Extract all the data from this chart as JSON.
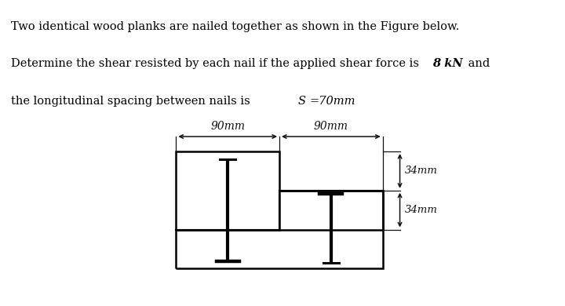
{
  "background_color": "#ffffff",
  "line_color": "#000000",
  "label_90_1": "90mm",
  "label_90_2": "90mm",
  "label_34_1": "34mm",
  "label_34_2": "34mm",
  "plank_lw": 1.8,
  "nail_lw": 2.2,
  "text_line1": "Two identical wood planks are nailed together as shown in the Figure below.",
  "text_line2_a": "Determine the shear resisted by each nail if the applied shear force is ",
  "text_line2_b": "8 kN",
  "text_line2_c": " and",
  "text_line3_a": "the longitudinal spacing between nails is ",
  "text_line3_b": "S",
  "text_line3_c": "=70mm"
}
